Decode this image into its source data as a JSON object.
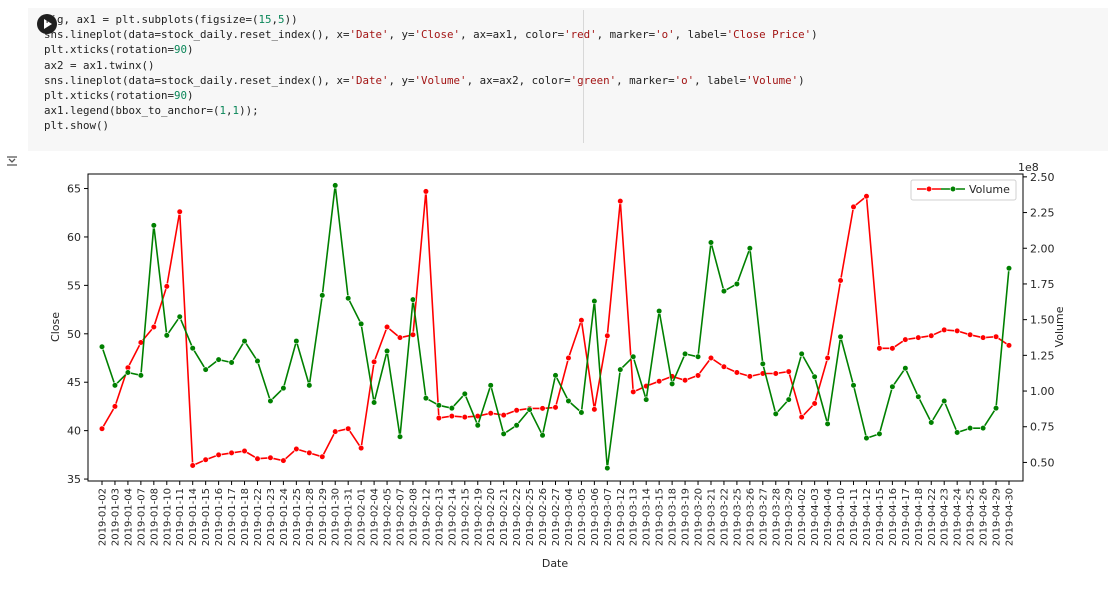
{
  "cell": {
    "lines": [
      [
        {
          "t": "fig, ax1 = plt.subplots(figsize=("
        },
        {
          "t": "15",
          "c": "num"
        },
        {
          "t": ","
        },
        {
          "t": "5",
          "c": "num"
        },
        {
          "t": "))"
        }
      ],
      [
        {
          "t": "sns.lineplot(data=stock_daily.reset_index(), x="
        },
        {
          "t": "'Date'",
          "c": "str"
        },
        {
          "t": ", y="
        },
        {
          "t": "'Close'",
          "c": "str"
        },
        {
          "t": ", ax=ax1, color="
        },
        {
          "t": "'red'",
          "c": "str"
        },
        {
          "t": ", marker="
        },
        {
          "t": "'o'",
          "c": "str"
        },
        {
          "t": ", label="
        },
        {
          "t": "'Close Price'",
          "c": "str"
        },
        {
          "t": ")"
        }
      ],
      [
        {
          "t": "plt.xticks(rotation="
        },
        {
          "t": "90",
          "c": "num"
        },
        {
          "t": ")"
        }
      ],
      [
        {
          "t": "ax2 = ax1.twinx()"
        }
      ],
      [
        {
          "t": "sns.lineplot(data=stock_daily.reset_index(), x="
        },
        {
          "t": "'Date'",
          "c": "str"
        },
        {
          "t": ", y="
        },
        {
          "t": "'Volume'",
          "c": "str"
        },
        {
          "t": ", ax=ax2, color="
        },
        {
          "t": "'green'",
          "c": "str"
        },
        {
          "t": ", marker="
        },
        {
          "t": "'o'",
          "c": "str"
        },
        {
          "t": ", label="
        },
        {
          "t": "'Volume'",
          "c": "str"
        },
        {
          "t": ")"
        }
      ],
      [
        {
          "t": "plt.xticks(rotation="
        },
        {
          "t": "90",
          "c": "num"
        },
        {
          "t": ")"
        }
      ],
      [
        {
          "t": "ax1.legend(bbox_to_anchor=("
        },
        {
          "t": "1",
          "c": "num"
        },
        {
          "t": ","
        },
        {
          "t": "1",
          "c": "num"
        },
        {
          "t": "));"
        }
      ],
      [
        {
          "t": "plt.show()"
        }
      ]
    ]
  },
  "icons": {
    "run": "play-icon",
    "output": "output-toggle-icon"
  },
  "chart_data": {
    "type": "line",
    "xlabel": "Date",
    "ylabel": "Close",
    "y2label": "Volume",
    "y2_offset_text": "1e8",
    "ylim": [
      34.8,
      66.5
    ],
    "y2lim": [
      0.37,
      2.52
    ],
    "yticks": [
      35,
      40,
      45,
      50,
      55,
      60,
      65
    ],
    "y2ticks": [
      0.5,
      0.75,
      1.0,
      1.25,
      1.5,
      1.75,
      2.0,
      2.25,
      2.5
    ],
    "y2ticklabels": [
      "0.50",
      "0.75",
      "1.00",
      "1.25",
      "1.50",
      "1.75",
      "2.00",
      "2.25",
      "2.50"
    ],
    "grid": false,
    "legend": {
      "position": "top-right",
      "entries": [
        "Volume"
      ]
    },
    "x": [
      "2019-01-02",
      "2019-01-03",
      "2019-01-04",
      "2019-01-07",
      "2019-01-08",
      "2019-01-10",
      "2019-01-11",
      "2019-01-14",
      "2019-01-15",
      "2019-01-16",
      "2019-01-17",
      "2019-01-18",
      "2019-01-22",
      "2019-01-23",
      "2019-01-24",
      "2019-01-25",
      "2019-01-28",
      "2019-01-29",
      "2019-01-30",
      "2019-01-31",
      "2019-02-01",
      "2019-02-04",
      "2019-02-05",
      "2019-02-07",
      "2019-02-08",
      "2019-02-12",
      "2019-02-13",
      "2019-02-14",
      "2019-02-15",
      "2019-02-19",
      "2019-02-20",
      "2019-02-21",
      "2019-02-22",
      "2019-02-25",
      "2019-02-26",
      "2019-02-27",
      "2019-03-04",
      "2019-03-05",
      "2019-03-06",
      "2019-03-07",
      "2019-03-12",
      "2019-03-13",
      "2019-03-14",
      "2019-03-15",
      "2019-03-18",
      "2019-03-19",
      "2019-03-20",
      "2019-03-21",
      "2019-03-22",
      "2019-03-25",
      "2019-03-26",
      "2019-03-27",
      "2019-03-28",
      "2019-03-29",
      "2019-04-02",
      "2019-04-03",
      "2019-04-04",
      "2019-04-10",
      "2019-04-11",
      "2019-04-12",
      "2019-04-15",
      "2019-04-16",
      "2019-04-17",
      "2019-04-18",
      "2019-04-22",
      "2019-04-23",
      "2019-04-24",
      "2019-04-25",
      "2019-04-26",
      "2019-04-29",
      "2019-04-30"
    ],
    "series": [
      {
        "name": "Close Price",
        "axis": "left",
        "color": "#ff0000",
        "values": [
          40.2,
          42.5,
          46.5,
          49.1,
          50.7,
          54.9,
          62.6,
          36.4,
          37.0,
          37.5,
          37.7,
          37.9,
          37.1,
          37.2,
          36.9,
          38.1,
          37.7,
          37.3,
          39.9,
          40.2,
          38.2,
          47.1,
          50.7,
          49.6,
          49.9,
          64.7,
          41.3,
          41.5,
          41.4,
          41.5,
          41.8,
          41.6,
          42.1,
          42.3,
          42.3,
          42.4,
          47.5,
          51.4,
          42.2,
          49.8,
          63.7,
          44.0,
          44.6,
          45.1,
          45.6,
          45.2,
          45.7,
          47.5,
          46.6,
          46.0,
          45.6,
          45.9,
          45.9,
          46.1,
          41.4,
          42.8,
          47.5,
          55.5,
          63.1,
          64.2,
          48.5,
          48.5,
          49.4,
          49.6,
          49.8,
          50.4,
          50.3,
          49.9,
          49.6,
          49.7,
          48.8
        ]
      },
      {
        "name": "Volume",
        "axis": "right",
        "color": "#008000",
        "values": [
          1.31,
          1.04,
          1.13,
          1.11,
          2.16,
          1.39,
          1.52,
          1.3,
          1.15,
          1.22,
          1.2,
          1.35,
          1.21,
          0.93,
          1.02,
          1.35,
          1.04,
          1.67,
          2.44,
          1.65,
          1.47,
          0.92,
          1.28,
          0.68,
          1.64,
          0.95,
          0.9,
          0.88,
          0.98,
          0.76,
          1.04,
          0.7,
          0.76,
          0.87,
          0.69,
          1.11,
          0.93,
          0.85,
          1.63,
          0.46,
          1.15,
          1.24,
          0.94,
          1.56,
          1.05,
          1.26,
          1.24,
          2.04,
          1.7,
          1.75,
          2.0,
          1.19,
          0.84,
          0.94,
          1.26,
          1.1,
          0.77,
          1.38,
          1.04,
          0.67,
          0.7,
          1.03,
          1.16,
          0.96,
          0.78,
          0.93,
          0.71,
          0.74,
          0.74,
          0.88,
          1.86
        ]
      }
    ]
  }
}
